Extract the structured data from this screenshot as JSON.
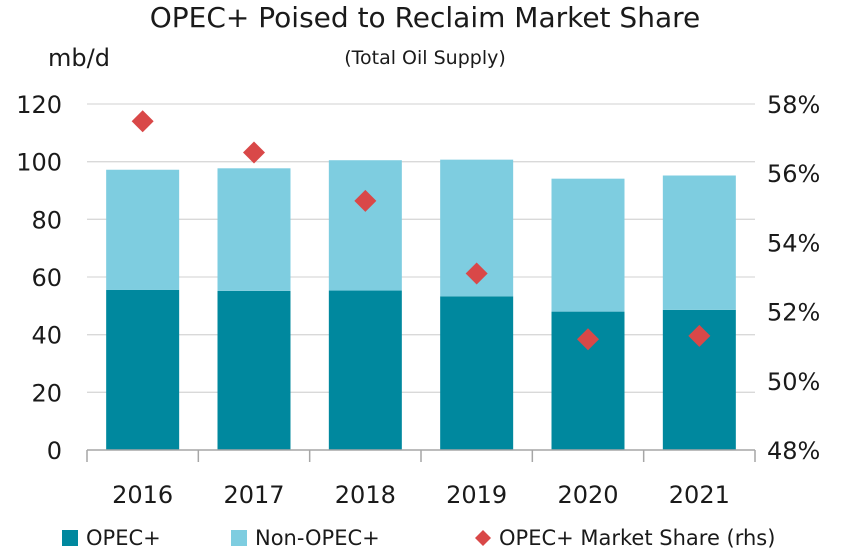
{
  "chart_data": {
    "type": "bar",
    "title": "OPEC+ Poised to Reclaim Market Share",
    "subtitle": "(Total Oil Supply)",
    "ylabel": "mb/d",
    "ylim": [
      0,
      120
    ],
    "yticks": [
      0,
      20,
      40,
      60,
      80,
      100,
      120
    ],
    "y2lim": [
      48,
      58
    ],
    "y2ticks": [
      "48%",
      "50%",
      "52%",
      "54%",
      "56%",
      "58%"
    ],
    "y2tick_values": [
      48,
      50,
      52,
      54,
      56,
      58
    ],
    "categories": [
      "2016",
      "2017",
      "2018",
      "2019",
      "2020",
      "2021"
    ],
    "stacked": true,
    "grid": true,
    "legend_position": "bottom",
    "series": [
      {
        "name": "OPEC+",
        "type": "bar",
        "color": "#00889E",
        "values": [
          55.5,
          55.2,
          55.3,
          53.3,
          48.0,
          48.6
        ]
      },
      {
        "name": "Non-OPEC+",
        "type": "bar",
        "color": "#7ECDE0",
        "values": [
          41.7,
          42.5,
          45.2,
          47.4,
          46.1,
          46.6
        ]
      },
      {
        "name": "OPEC+ Market Share (rhs)",
        "type": "scatter",
        "marker": "diamond",
        "color": "#D94848",
        "axis": "right",
        "values": [
          57.5,
          56.6,
          55.2,
          53.1,
          51.2,
          51.3
        ]
      }
    ]
  }
}
